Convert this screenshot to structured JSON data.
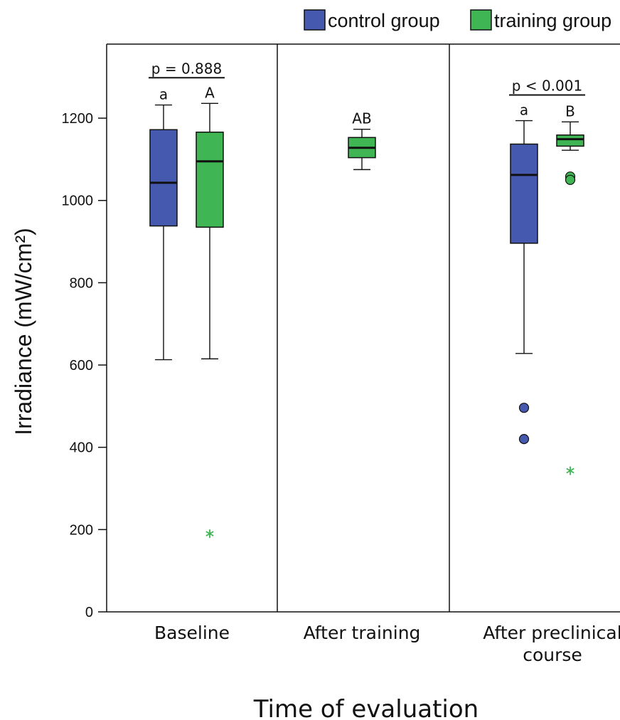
{
  "chart_data": {
    "type": "box",
    "ylabel": "Irradiance (mW/cm²)",
    "xlabel": "Time of evaluation",
    "ylim": [
      0,
      1380
    ],
    "yticks": [
      0,
      200,
      400,
      600,
      800,
      1000,
      1200
    ],
    "legend": {
      "position": "top-right",
      "items": [
        {
          "name": "control group",
          "color": "#4559ae"
        },
        {
          "name": "training group",
          "color": "#3fb554"
        }
      ]
    },
    "panels": [
      {
        "label": "Baseline",
        "p_value": "p = 0.888",
        "boxes": [
          {
            "series": "control group",
            "letter": "a",
            "whisker_low": 613,
            "q1": 938,
            "median": 1043,
            "q3": 1172,
            "whisker_high": 1232,
            "outliers": [],
            "extremes": []
          },
          {
            "series": "training group",
            "letter": "A",
            "whisker_low": 615,
            "q1": 935,
            "median": 1095,
            "q3": 1166,
            "whisker_high": 1236,
            "outliers": [],
            "extremes": [
              190
            ]
          }
        ]
      },
      {
        "label": "After training",
        "p_value": "",
        "boxes": [
          {
            "series": "training group",
            "letter": "AB",
            "whisker_low": 1075,
            "q1": 1104,
            "median": 1128,
            "q3": 1153,
            "whisker_high": 1173,
            "outliers": [],
            "extremes": []
          }
        ]
      },
      {
        "label": "After preclinical course",
        "label_lines": [
          "After preclinical",
          "course"
        ],
        "p_value": "p < 0.001",
        "boxes": [
          {
            "series": "control group",
            "letter": "a",
            "whisker_low": 628,
            "q1": 896,
            "median": 1062,
            "q3": 1137,
            "whisker_high": 1194,
            "outliers": [
              496,
              420
            ],
            "extremes": []
          },
          {
            "series": "training group",
            "letter": "B",
            "whisker_low": 1122,
            "q1": 1132,
            "median": 1149,
            "q3": 1159,
            "whisker_high": 1191,
            "outliers": [
              1058,
              1050
            ],
            "extremes": [
              343
            ]
          }
        ]
      }
    ]
  }
}
